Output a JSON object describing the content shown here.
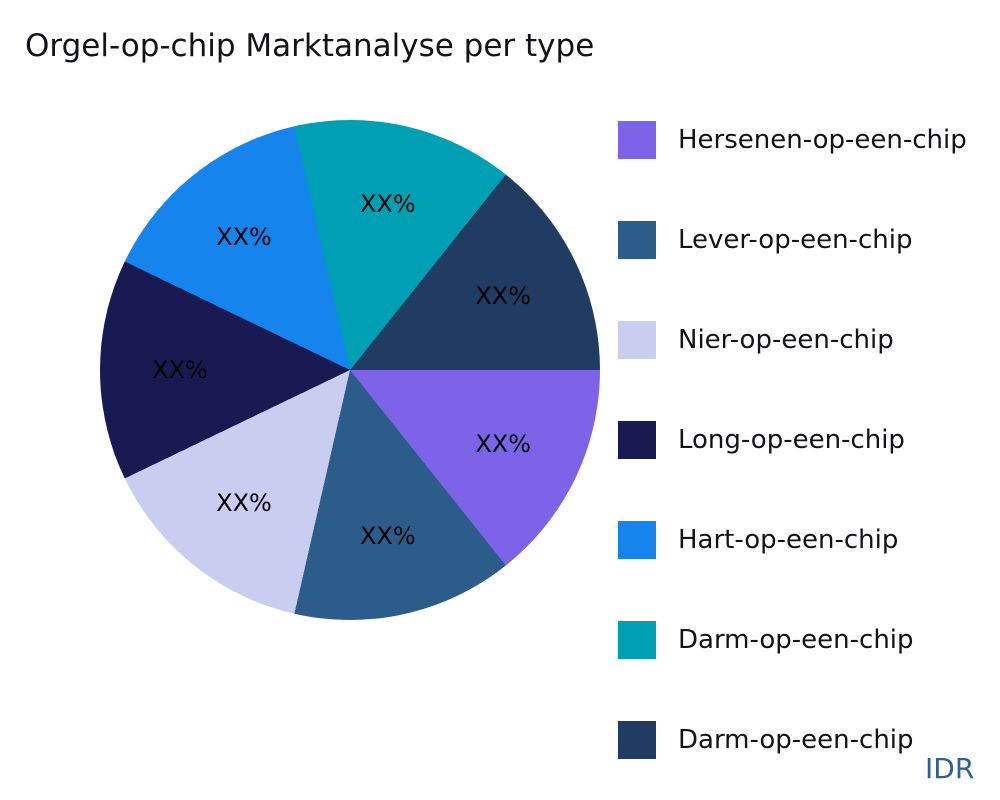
{
  "watermark": "IDR",
  "chart_data": {
    "type": "pie",
    "title": "Orgel-op-chip Marktanalyse per type",
    "legend_position": "right",
    "direction": "clockwise",
    "start_angle_deg": -12.857,
    "slice_label_format": "XX%",
    "legend": [
      {
        "label": "Hersenen-op-een-chip",
        "color": "#7C63E8"
      },
      {
        "label": "Lever-op-een-chip",
        "color": "#2B5C8A"
      },
      {
        "label": "Nier-op-een-chip",
        "color": "#C9CDF0"
      },
      {
        "label": "Long-op-een-chip",
        "color": "#1A1A52"
      },
      {
        "label": "Hart-op-een-chip",
        "color": "#1584EC"
      },
      {
        "label": "Darm-op-een-chip",
        "color": "#00A0B4"
      },
      {
        "label": "Darm-op-een-chip",
        "color": "#203C63"
      }
    ],
    "slices": [
      {
        "label": "Darm-op-een-chip",
        "color": "#00A0B4",
        "value": 14.286,
        "display": "XX%"
      },
      {
        "label": "Darm-op-een-chip",
        "color": "#203C63",
        "value": 14.286,
        "display": "XX%"
      },
      {
        "label": "Hersenen-op-een-chip",
        "color": "#7C63E8",
        "value": 14.286,
        "display": "XX%"
      },
      {
        "label": "Lever-op-een-chip",
        "color": "#2B5C8A",
        "value": 14.286,
        "display": "XX%"
      },
      {
        "label": "Nier-op-een-chip",
        "color": "#C9CDF0",
        "value": 14.286,
        "display": "XX%"
      },
      {
        "label": "Long-op-een-chip",
        "color": "#1A1A52",
        "value": 14.286,
        "display": "XX%"
      },
      {
        "label": "Hart-op-een-chip",
        "color": "#1584EC",
        "value": 14.286,
        "display": "XX%"
      }
    ]
  }
}
